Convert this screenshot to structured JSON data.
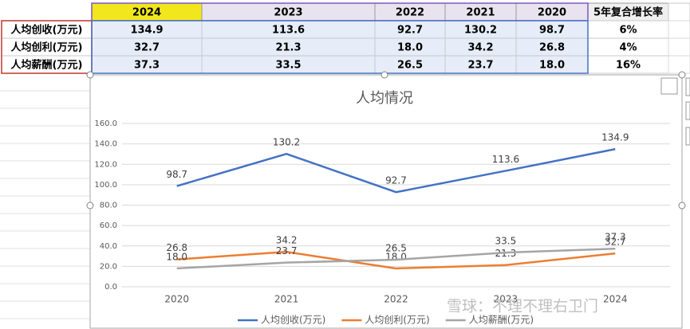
{
  "table": {
    "header": [
      "2024",
      "2023",
      "2022",
      "2021",
      "2020",
      "5年复合增长率"
    ],
    "rows": [
      [
        "人均创收(万元)",
        "134.9",
        "113.6",
        "92.7",
        "130.2",
        "98.7",
        "6%"
      ],
      [
        "人均创利(万元)",
        "32.7",
        "21.3",
        "18.0",
        "34.2",
        "26.8",
        "4%"
      ],
      [
        "人均薪酬(万元)",
        "37.3",
        "33.5",
        "26.5",
        "23.7",
        "18.0",
        "16%"
      ]
    ]
  },
  "chart_data": {
    "type": "line",
    "title": "人均情况",
    "categories": [
      "2020",
      "2021",
      "2022",
      "2023",
      "2024"
    ],
    "series": [
      {
        "name": "人均创收(万元)",
        "color": "#4472c4",
        "values": [
          98.7,
          130.2,
          92.7,
          113.6,
          134.9
        ],
        "value_labels": [
          "98.7",
          "130.2",
          "92.7",
          "113.6",
          "134.9"
        ]
      },
      {
        "name": "人均创利(万元)",
        "color": "#ed7d31",
        "values": [
          26.8,
          34.2,
          18,
          21.3,
          32.7
        ],
        "value_labels": [
          "26.8",
          "34.2",
          "18.0",
          "21.3",
          "32.7"
        ]
      },
      {
        "name": "人均薪酬(万元)",
        "color": "#a5a5a5",
        "values": [
          18,
          23.7,
          26.5,
          33.5,
          37.3
        ],
        "value_labels": [
          "18.0",
          "23.7",
          "26.5",
          "33.5",
          "37.3"
        ]
      }
    ],
    "ylim": [
      0,
      160
    ],
    "yticks": [
      {
        "value": 0,
        "label": "0.0"
      },
      {
        "value": 20,
        "label": "20.0"
      },
      {
        "value": 40,
        "label": "40.0"
      },
      {
        "value": 60,
        "label": "60.0"
      },
      {
        "value": 80,
        "label": "80.0"
      },
      {
        "value": 100,
        "label": "100.0"
      },
      {
        "value": 120,
        "label": "120.0"
      },
      {
        "value": 140,
        "label": "140.0"
      },
      {
        "value": 160,
        "label": "160.0"
      }
    ],
    "grid": true,
    "legend": "bottom"
  },
  "watermark": "雪球：不理不理右卫门"
}
